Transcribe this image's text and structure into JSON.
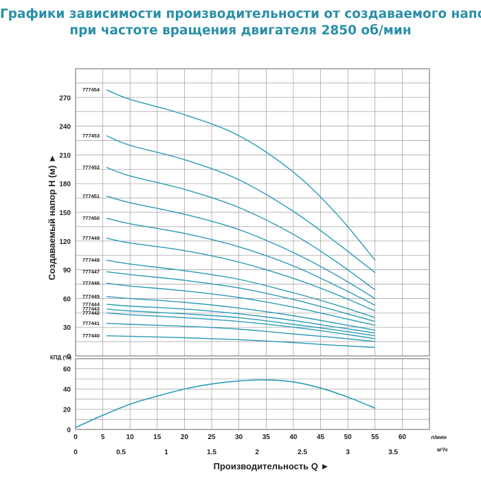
{
  "title": {
    "line1": "Графики зависимости производительности от создаваемого напора",
    "line2": "при частоте вращения двигателя 2850 об/мин"
  },
  "colors": {
    "curve": "#2a9bb5",
    "grid": "#9a9a9a",
    "title": "#2a8fa8",
    "text": "#222222"
  },
  "chart_data": [
    {
      "type": "line",
      "ylabel": "Создаваемый напор H (м) ►",
      "ylim": [
        0,
        300
      ],
      "yticks": [
        0,
        30,
        60,
        90,
        120,
        150,
        180,
        210,
        240,
        270
      ],
      "xlim": [
        0,
        65
      ],
      "xticks_lpm": [
        0,
        5,
        10,
        15,
        20,
        25,
        30,
        35,
        40,
        45,
        50,
        55,
        60
      ],
      "xunit_lpm": "л/мин",
      "xticks_m3h": [
        "0",
        "0.5",
        "1",
        "1.5",
        "2",
        "2.5",
        "3",
        "3.5"
      ],
      "xunit_m3h": "м³/ч",
      "xlabel": "Производительность Q ►",
      "grid": true,
      "series": [
        {
          "name": "777454",
          "x": [
            0,
            10,
            20,
            30,
            40,
            48,
            55
          ],
          "y": [
            278,
            268,
            252,
            230,
            192,
            148,
            100
          ]
        },
        {
          "name": "777453",
          "x": [
            0,
            10,
            20,
            30,
            40,
            48,
            55
          ],
          "y": [
            230,
            220,
            205,
            184,
            151,
            118,
            87
          ]
        },
        {
          "name": "777452",
          "x": [
            0,
            10,
            20,
            30,
            40,
            48,
            55
          ],
          "y": [
            197,
            188,
            174,
            155,
            127,
            98,
            69
          ]
        },
        {
          "name": "777451",
          "x": [
            0,
            10,
            20,
            30,
            40,
            48,
            55
          ],
          "y": [
            167,
            160,
            148,
            132,
            108,
            84,
            60
          ]
        },
        {
          "name": "777450",
          "x": [
            0,
            10,
            20,
            30,
            40,
            48,
            55
          ],
          "y": [
            144,
            138,
            128,
            114,
            94,
            73,
            53
          ]
        },
        {
          "name": "777449",
          "x": [
            0,
            10,
            20,
            30,
            40,
            48,
            55
          ],
          "y": [
            123,
            118,
            110,
            98,
            81,
            64,
            47
          ]
        },
        {
          "name": "777448",
          "x": [
            0,
            10,
            20,
            30,
            40,
            48,
            55
          ],
          "y": [
            100,
            96,
            89,
            80,
            66,
            53,
            40
          ]
        },
        {
          "name": "777447",
          "x": [
            0,
            10,
            20,
            30,
            40,
            48,
            55
          ],
          "y": [
            88,
            85,
            79,
            71,
            59,
            47,
            36
          ]
        },
        {
          "name": "777446",
          "x": [
            0,
            10,
            20,
            30,
            40,
            48,
            55
          ],
          "y": [
            76,
            73,
            68,
            61,
            51,
            41,
            32
          ]
        },
        {
          "name": "777445",
          "x": [
            0,
            10,
            20,
            30,
            40,
            48,
            55
          ],
          "y": [
            62,
            60,
            56,
            50,
            42,
            34,
            27
          ]
        },
        {
          "name": "777444",
          "x": [
            0,
            10,
            20,
            30,
            40,
            48,
            55
          ],
          "y": [
            54,
            52,
            49,
            44,
            37,
            30,
            24
          ]
        },
        {
          "name": "777443",
          "x": [
            0,
            10,
            20,
            30,
            40,
            48,
            55
          ],
          "y": [
            49,
            47,
            44,
            40,
            33,
            27,
            21
          ]
        },
        {
          "name": "777442",
          "x": [
            0,
            10,
            20,
            30,
            40,
            48,
            55
          ],
          "y": [
            45,
            43,
            40,
            36,
            30,
            24,
            18
          ]
        },
        {
          "name": "777441",
          "x": [
            0,
            10,
            20,
            30,
            40,
            48,
            55
          ],
          "y": [
            34,
            33,
            31,
            28,
            23,
            19,
            15
          ]
        },
        {
          "name": "777440",
          "x": [
            0,
            10,
            20,
            30,
            40,
            48,
            55
          ],
          "y": [
            21,
            20.5,
            19,
            17,
            14,
            11,
            9
          ]
        }
      ]
    },
    {
      "type": "line",
      "ylabel": "КПД (%)",
      "ylim": [
        0,
        70
      ],
      "yticks": [
        0,
        20,
        40,
        60
      ],
      "xlim": [
        0,
        65
      ],
      "grid": true,
      "series": [
        {
          "name": "КПД",
          "x": [
            0,
            5,
            10,
            15,
            20,
            25,
            30,
            35,
            40,
            45,
            50,
            55
          ],
          "y": [
            2,
            14,
            25,
            33,
            40,
            45,
            48,
            49,
            47,
            41,
            32,
            21
          ]
        }
      ]
    }
  ]
}
